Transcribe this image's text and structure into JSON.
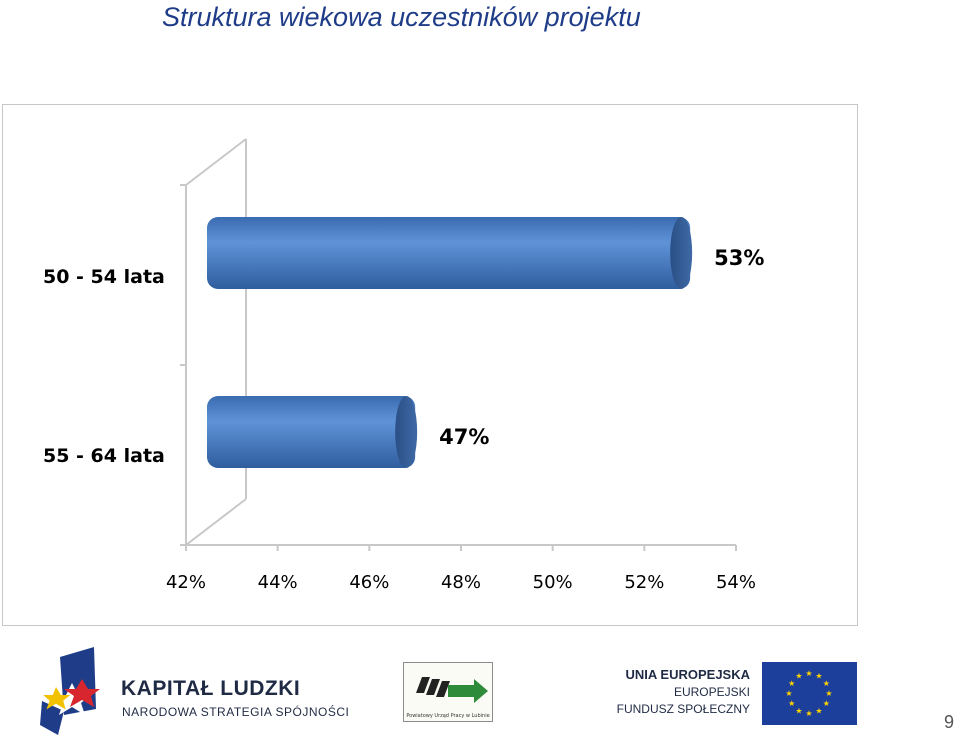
{
  "title": "Struktura wiekowa uczestników projektu",
  "chart_data": {
    "type": "bar",
    "orientation": "horizontal",
    "three_d": true,
    "categories": [
      "50 - 54 lata",
      "55 - 64 lata"
    ],
    "values": [
      53,
      47
    ],
    "data_labels": [
      "53%",
      "47%"
    ],
    "xlim": [
      42,
      54
    ],
    "x_ticks": [
      42,
      44,
      46,
      48,
      50,
      52,
      54
    ],
    "x_tick_labels": [
      "42%",
      "44%",
      "46%",
      "48%",
      "50%",
      "52%",
      "54%"
    ],
    "bar_color": "#4a7ec4",
    "grid": false,
    "legend": "none"
  },
  "footer": {
    "kapital_ludzki": "KAPITAŁ LUDZKI",
    "strategy": "NARODOWA STRATEGIA SPÓJNOŚCI",
    "pup_text": "Powiatowy Urząd Pracy w Lubinie",
    "eu_line1": "UNIA EUROPEJSKA",
    "eu_line2": "EUROPEJSKI",
    "eu_line3": "FUNDUSZ SPOŁECZNY",
    "page_number": "9"
  }
}
